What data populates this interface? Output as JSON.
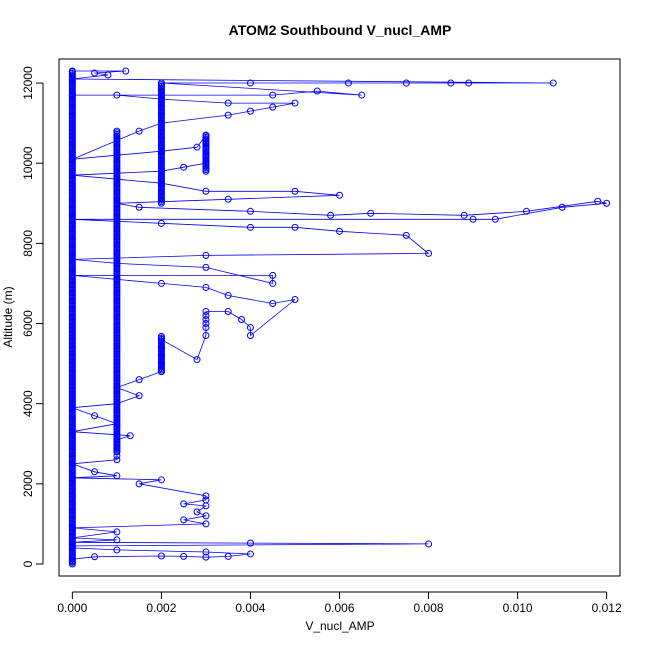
{
  "chart_data": {
    "type": "scatter",
    "title": "ATOM2 Southbound V_nucl_AMP",
    "xlabel": "V_nucl_AMP",
    "ylabel": "Altitude (m)",
    "xlim": [
      -0.0003,
      0.0123
    ],
    "ylim": [
      -300,
      12600
    ],
    "x_ticks": [
      0.0,
      0.002,
      0.004,
      0.006,
      0.008,
      0.01,
      0.012
    ],
    "x_tick_labels": [
      "0.000",
      "0.002",
      "0.004",
      "0.006",
      "0.008",
      "0.010",
      "0.012"
    ],
    "y_ticks": [
      0,
      2000,
      4000,
      6000,
      8000,
      10000,
      12000
    ],
    "y_tick_labels": [
      "0",
      "2000",
      "4000",
      "6000",
      "8000",
      "10000",
      "12000"
    ],
    "grid": false,
    "legend": "none",
    "series": [
      {
        "color": "#0000ff",
        "marker": "open-circle",
        "connected": true,
        "points": [
          [
            0.0,
            50
          ],
          [
            0.0,
            120
          ],
          [
            0.0005,
            180
          ],
          [
            0.002,
            200
          ],
          [
            0.0025,
            190
          ],
          [
            0.003,
            170
          ],
          [
            0.0035,
            190
          ],
          [
            0.004,
            250
          ],
          [
            0.003,
            300
          ],
          [
            0.001,
            350
          ],
          [
            0.0,
            400
          ],
          [
            0.0,
            450
          ],
          [
            0.008,
            500
          ],
          [
            0.004,
            520
          ],
          [
            0.0,
            540
          ],
          [
            0.001,
            600
          ],
          [
            0.0,
            650
          ],
          [
            0.001,
            800
          ],
          [
            0.0,
            900
          ],
          [
            0.003,
            1000
          ],
          [
            0.0025,
            1100
          ],
          [
            0.003,
            1200
          ],
          [
            0.0028,
            1300
          ],
          [
            0.003,
            1450
          ],
          [
            0.0025,
            1500
          ],
          [
            0.003,
            1600
          ],
          [
            0.003,
            1700
          ],
          [
            0.0015,
            2000
          ],
          [
            0.002,
            2100
          ],
          [
            0.0,
            2150
          ],
          [
            0.001,
            2200
          ],
          [
            0.0005,
            2300
          ],
          [
            0.0,
            2500
          ],
          [
            0.001,
            2600
          ],
          [
            0.001,
            2700
          ],
          [
            0.001,
            2800
          ],
          [
            0.001,
            2900
          ],
          [
            0.001,
            3000
          ],
          [
            0.001,
            3100
          ],
          [
            0.0013,
            3200
          ],
          [
            0.0,
            3300
          ],
          [
            0.001,
            3500
          ],
          [
            0.0005,
            3700
          ],
          [
            0.0,
            3900
          ],
          [
            0.001,
            4000
          ],
          [
            0.0015,
            4200
          ],
          [
            0.001,
            4400
          ],
          [
            0.0015,
            4600
          ],
          [
            0.002,
            4800
          ],
          [
            0.002,
            5000
          ],
          [
            0.002,
            5200
          ],
          [
            0.002,
            5400
          ],
          [
            0.002,
            5600
          ],
          [
            0.0028,
            5100
          ],
          [
            0.003,
            5700
          ],
          [
            0.003,
            5900
          ],
          [
            0.003,
            6000
          ],
          [
            0.003,
            6100
          ],
          [
            0.003,
            6200
          ],
          [
            0.003,
            6300
          ],
          [
            0.0035,
            6300
          ],
          [
            0.0038,
            6100
          ],
          [
            0.004,
            5900
          ],
          [
            0.004,
            5700
          ],
          [
            0.005,
            6600
          ],
          [
            0.0045,
            6500
          ],
          [
            0.0035,
            6700
          ],
          [
            0.003,
            6900
          ],
          [
            0.002,
            7000
          ],
          [
            0.001,
            7100
          ],
          [
            0.0,
            7200
          ],
          [
            0.0045,
            7200
          ],
          [
            0.0045,
            7000
          ],
          [
            0.003,
            7400
          ],
          [
            0.001,
            7500
          ],
          [
            0.0,
            7600
          ],
          [
            0.003,
            7700
          ],
          [
            0.008,
            7750
          ],
          [
            0.0075,
            8200
          ],
          [
            0.006,
            8300
          ],
          [
            0.005,
            8400
          ],
          [
            0.004,
            8400
          ],
          [
            0.002,
            8500
          ],
          [
            0.0,
            8600
          ],
          [
            0.009,
            8600
          ],
          [
            0.0095,
            8600
          ],
          [
            0.011,
            8900
          ],
          [
            0.012,
            9000
          ],
          [
            0.0118,
            9050
          ],
          [
            0.0102,
            8800
          ],
          [
            0.0088,
            8700
          ],
          [
            0.0067,
            8750
          ],
          [
            0.0058,
            8700
          ],
          [
            0.004,
            8800
          ],
          [
            0.0015,
            8900
          ],
          [
            0.001,
            9000
          ],
          [
            0.0035,
            9100
          ],
          [
            0.006,
            9200
          ],
          [
            0.005,
            9300
          ],
          [
            0.003,
            9300
          ],
          [
            0.002,
            9500
          ],
          [
            0.001,
            9600
          ],
          [
            0.0,
            9700
          ],
          [
            0.002,
            9800
          ],
          [
            0.0025,
            9900
          ],
          [
            0.003,
            10000
          ],
          [
            0.003,
            10200
          ],
          [
            0.003,
            10400
          ],
          [
            0.003,
            10500
          ],
          [
            0.003,
            10700
          ],
          [
            0.0028,
            10400
          ],
          [
            0.002,
            10300
          ],
          [
            0.001,
            10200
          ],
          [
            0.0,
            10100
          ],
          [
            0.0015,
            10800
          ],
          [
            0.002,
            11000
          ],
          [
            0.0035,
            11200
          ],
          [
            0.004,
            11300
          ],
          [
            0.0045,
            11400
          ],
          [
            0.005,
            11500
          ],
          [
            0.0035,
            11500
          ],
          [
            0.002,
            11600
          ],
          [
            0.001,
            11700
          ],
          [
            0.0,
            11700
          ],
          [
            0.0045,
            11700
          ],
          [
            0.0055,
            11800
          ],
          [
            0.0065,
            11700
          ],
          [
            0.002,
            12000
          ],
          [
            0.004,
            12000
          ],
          [
            0.0062,
            12000
          ],
          [
            0.0075,
            12000
          ],
          [
            0.0085,
            12000
          ],
          [
            0.0089,
            12000
          ],
          [
            0.0108,
            12000
          ],
          [
            0.0,
            12100
          ],
          [
            0.0008,
            12200
          ],
          [
            0.0005,
            12250
          ],
          [
            0.0012,
            12300
          ],
          [
            0.0,
            12300
          ]
        ]
      }
    ],
    "vertical_clusters": [
      {
        "x": 0.0,
        "y_from": 0,
        "y_to": 12300
      },
      {
        "x": 0.001,
        "y_from": 2800,
        "y_to": 10800
      },
      {
        "x": 0.002,
        "y_from": 9000,
        "y_to": 12000
      },
      {
        "x": 0.002,
        "y_from": 4800,
        "y_to": 5700
      },
      {
        "x": 0.003,
        "y_from": 9800,
        "y_to": 10700
      }
    ]
  }
}
